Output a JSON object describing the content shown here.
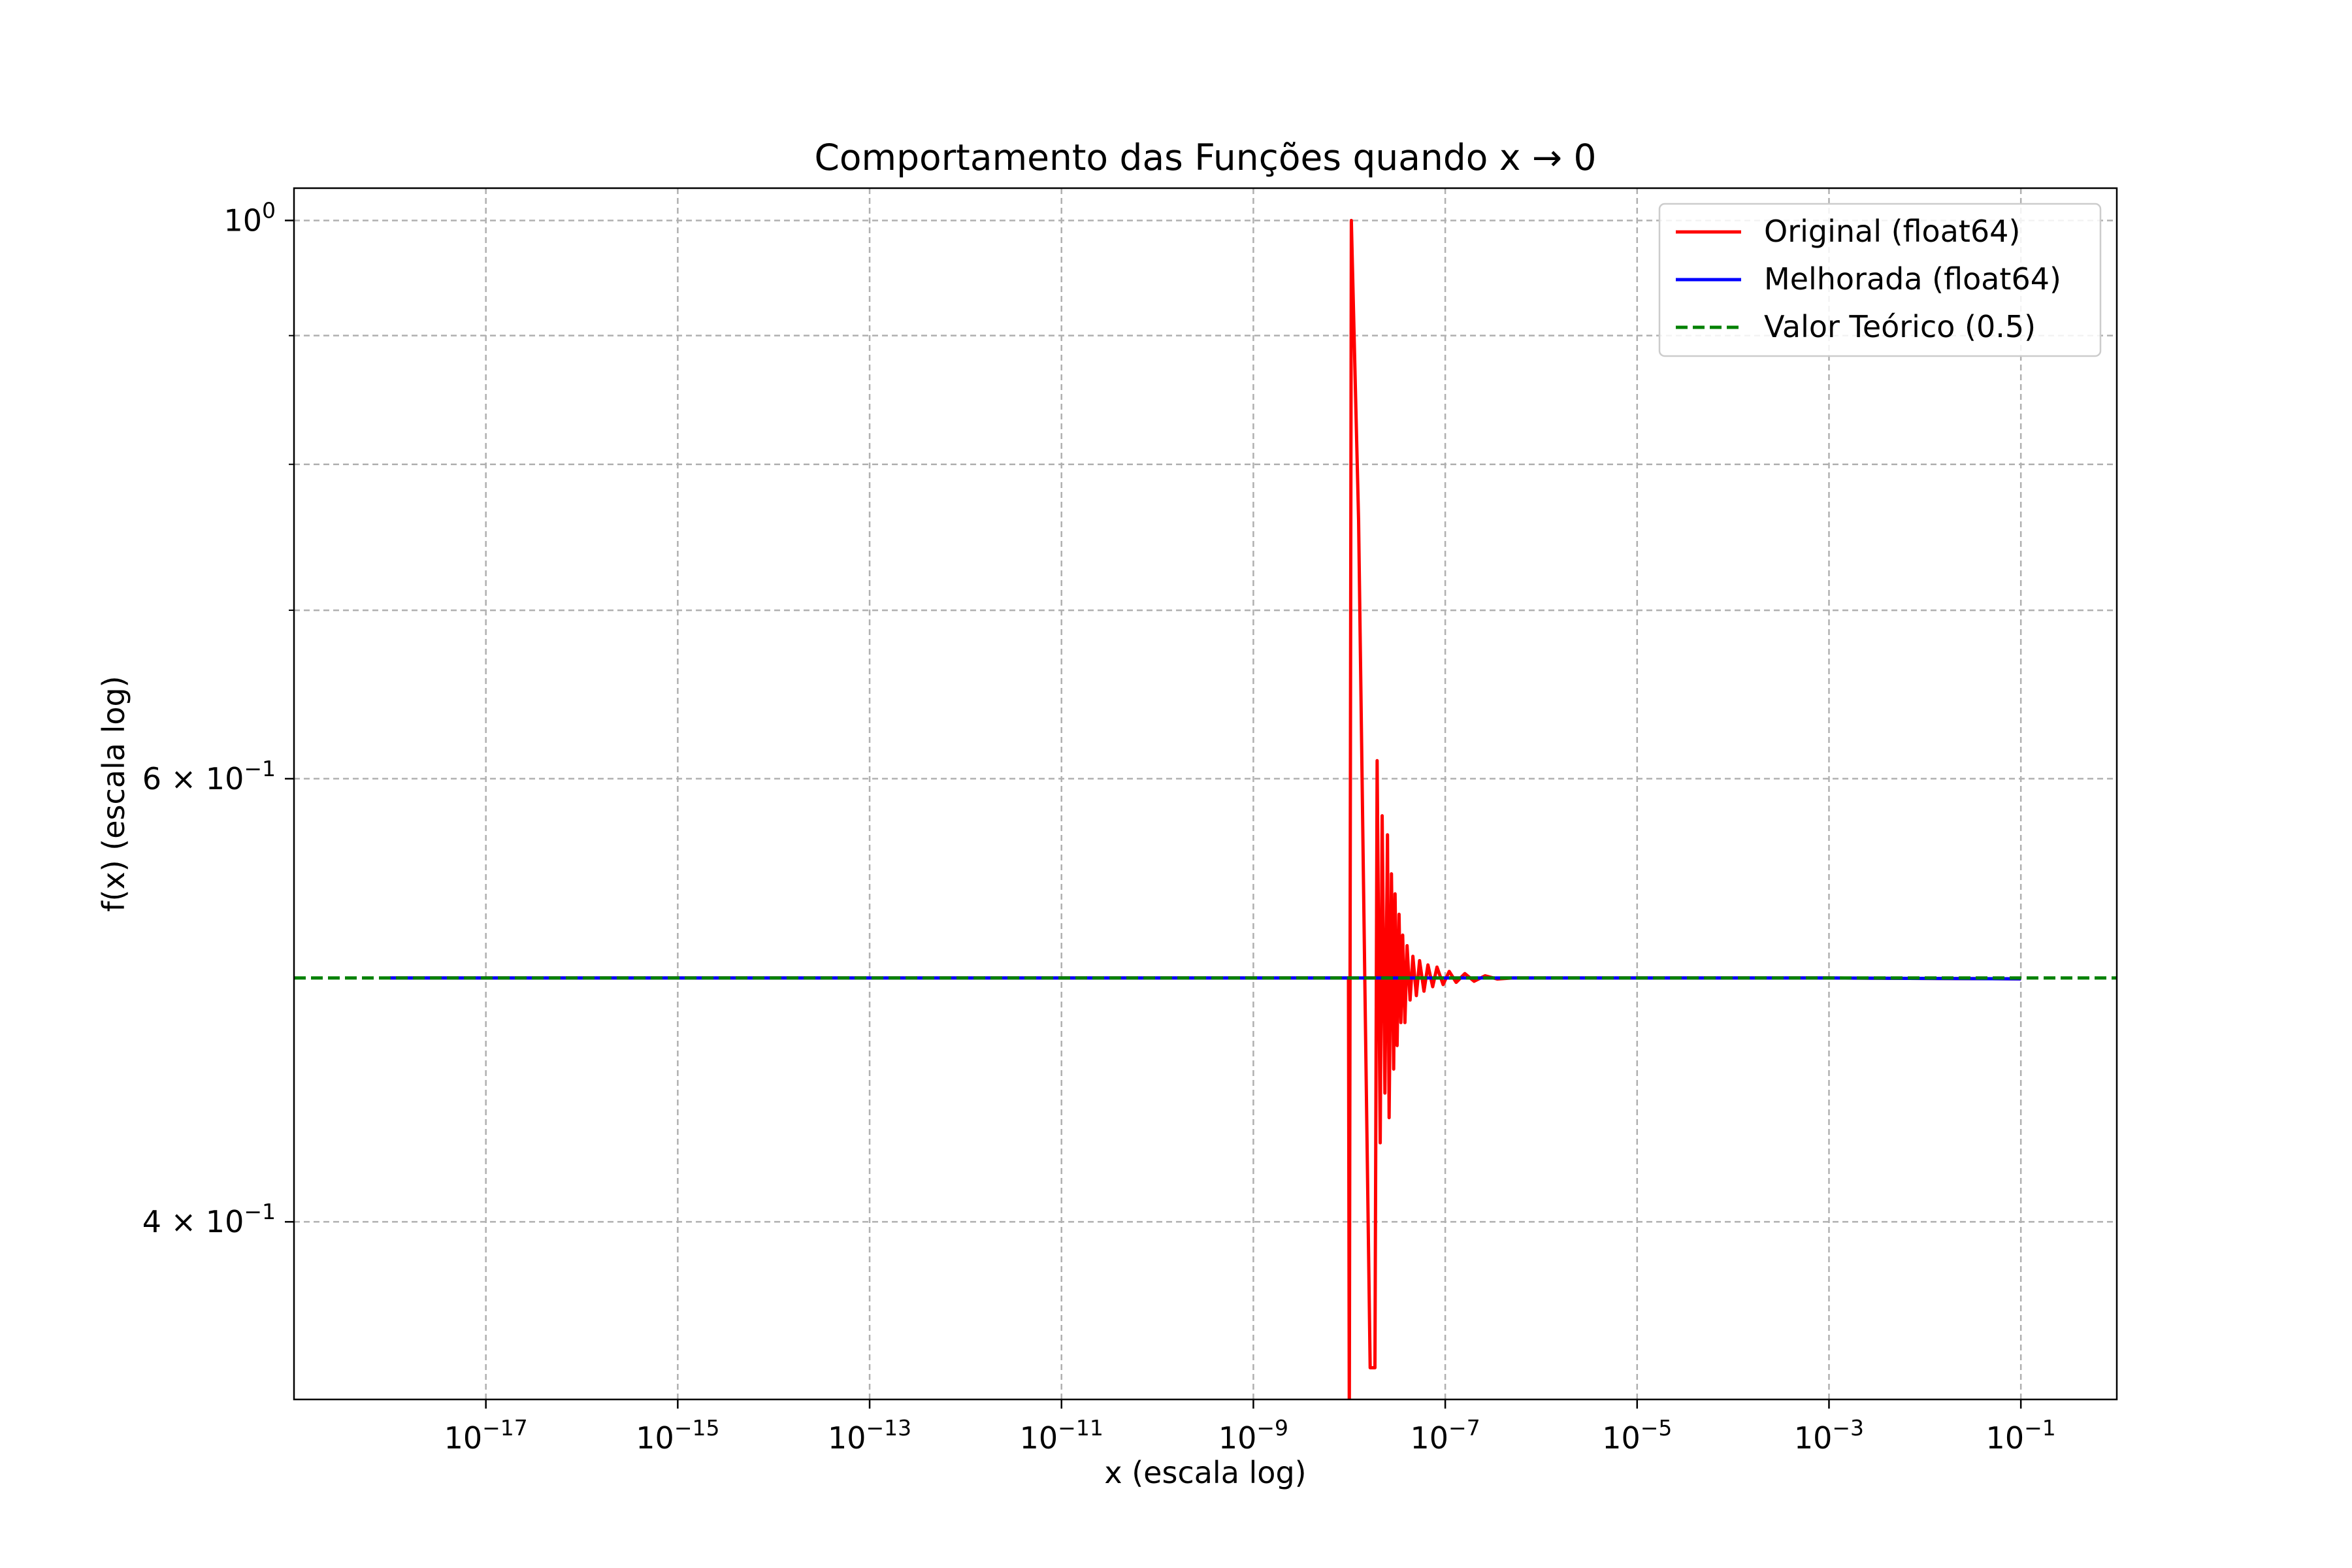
{
  "chart_data": {
    "type": "line",
    "title": "Comportamento das Funções quando x → 0",
    "xlabel": "x (escala log)",
    "ylabel": "f(x) (escala log)",
    "xscale": "log",
    "yscale": "log",
    "xlim": [
      1e-19,
      1
    ],
    "ylim": [
      0.34,
      1.03
    ],
    "grid": true,
    "grid_style": "dashed",
    "legend_position": "top-right",
    "x_ticks": [
      {
        "value": 1e-17,
        "base": "10",
        "exp": "−17"
      },
      {
        "value": 1e-15,
        "base": "10",
        "exp": "−15"
      },
      {
        "value": 1e-13,
        "base": "10",
        "exp": "−13"
      },
      {
        "value": 1e-11,
        "base": "10",
        "exp": "−11"
      },
      {
        "value": 1e-09,
        "base": "10",
        "exp": "−9"
      },
      {
        "value": 1e-07,
        "base": "10",
        "exp": "−7"
      },
      {
        "value": 1e-05,
        "base": "10",
        "exp": "−5"
      },
      {
        "value": 0.001,
        "base": "10",
        "exp": "−3"
      },
      {
        "value": 0.1,
        "base": "10",
        "exp": "−1"
      }
    ],
    "y_ticks_major": [
      {
        "value": 1.0,
        "base": "10",
        "exp": "0",
        "mant": ""
      },
      {
        "value": 0.6,
        "base": "10",
        "exp": "−1",
        "mant": "6 × "
      },
      {
        "value": 0.4,
        "base": "10",
        "exp": "−1",
        "mant": "4 × "
      }
    ],
    "y_grid_minor": [
      0.9,
      0.8,
      0.7
    ],
    "series": [
      {
        "name": "Original (float64)",
        "color": "#ff0000",
        "style": "solid",
        "points": [
          [
            1e-18,
            0.5
          ],
          [
            1e-16,
            0.5
          ],
          [
            1e-14,
            0.5
          ],
          [
            1e-12,
            0.5
          ],
          [
            1e-10,
            0.5
          ],
          [
            9.8e-09,
            0.5
          ],
          [
            1e-08,
            0.0
          ],
          [
            1.05e-08,
            1.0
          ],
          [
            1.25e-08,
            0.76
          ],
          [
            1.45e-08,
            0.5
          ],
          [
            1.65e-08,
            0.35
          ],
          [
            1.85e-08,
            0.35
          ],
          [
            1.95e-08,
            0.61
          ],
          [
            2.1e-08,
            0.43
          ],
          [
            2.2e-08,
            0.58
          ],
          [
            2.35e-08,
            0.45
          ],
          [
            2.5e-08,
            0.57
          ],
          [
            2.6e-08,
            0.44
          ],
          [
            2.75e-08,
            0.55
          ],
          [
            2.9e-08,
            0.46
          ],
          [
            3e-08,
            0.54
          ],
          [
            3.15e-08,
            0.47
          ],
          [
            3.3e-08,
            0.53
          ],
          [
            3.45e-08,
            0.48
          ],
          [
            3.6e-08,
            0.52
          ],
          [
            3.8e-08,
            0.48
          ],
          [
            4e-08,
            0.515
          ],
          [
            4.3e-08,
            0.49
          ],
          [
            4.6e-08,
            0.51
          ],
          [
            5e-08,
            0.492
          ],
          [
            5.4e-08,
            0.508
          ],
          [
            6e-08,
            0.494
          ],
          [
            6.6e-08,
            0.506
          ],
          [
            7.4e-08,
            0.496
          ],
          [
            8.2e-08,
            0.505
          ],
          [
            9.5e-08,
            0.497
          ],
          [
            1.1e-07,
            0.503
          ],
          [
            1.3e-07,
            0.498
          ],
          [
            1.6e-07,
            0.502
          ],
          [
            2e-07,
            0.4985
          ],
          [
            2.6e-07,
            0.501
          ],
          [
            3.5e-07,
            0.4995
          ],
          [
            5e-07,
            0.5
          ],
          [
            1e-05,
            0.5
          ],
          [
            0.001,
            0.5
          ],
          [
            0.1,
            0.4996
          ]
        ]
      },
      {
        "name": "Melhorada (float64)",
        "color": "#0000ff",
        "style": "solid",
        "points": [
          [
            1e-18,
            0.5
          ],
          [
            1e-09,
            0.5
          ],
          [
            0.001,
            0.5
          ],
          [
            0.1,
            0.4996
          ]
        ]
      },
      {
        "name": "Valor Teórico (0.5)",
        "color": "#008000",
        "style": "dashed",
        "points": [
          [
            1e-19,
            0.5
          ],
          [
            1,
            0.5
          ]
        ]
      }
    ]
  }
}
